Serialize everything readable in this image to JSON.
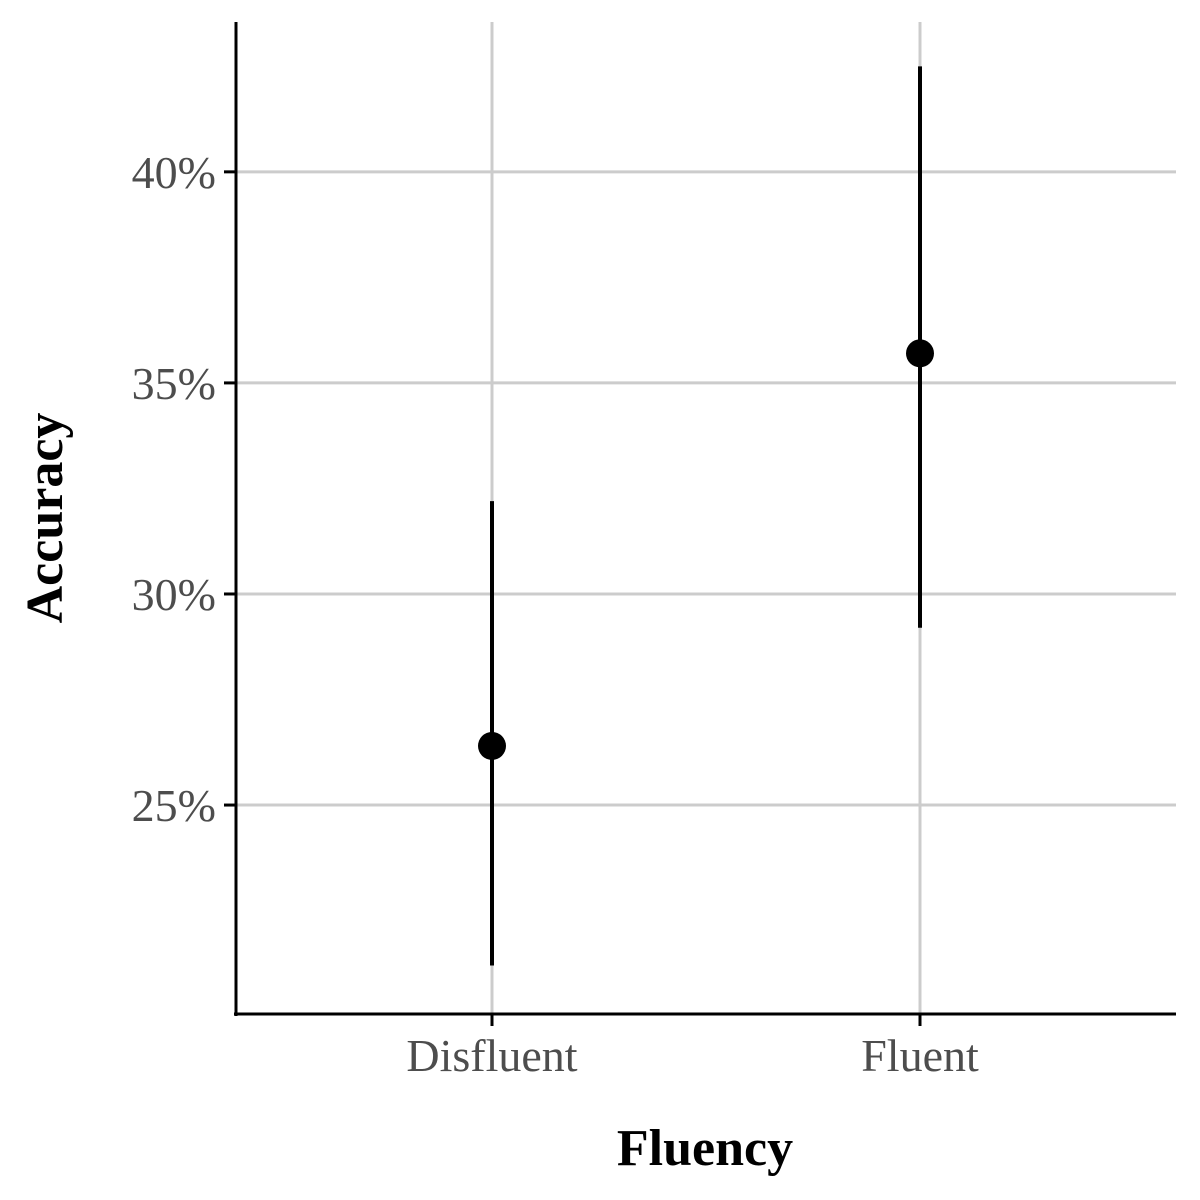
{
  "chart_data": {
    "type": "scatter",
    "title": "",
    "xlabel": "Fluency",
    "ylabel": "Accuracy",
    "categories": [
      "Disfluent",
      "Fluent"
    ],
    "series": [
      {
        "values": [
          26.4,
          35.7
        ],
        "ci_lower": [
          21.2,
          29.2
        ],
        "ci_upper": [
          32.2,
          42.5
        ]
      }
    ],
    "yticks": [
      25,
      30,
      35,
      40
    ],
    "ytick_labels": [
      "25%",
      "30%",
      "35%",
      "40%"
    ],
    "ylim": [
      20.05,
      43.55
    ],
    "grid": true,
    "legend": "none",
    "colors": {
      "point": "#000000",
      "errorbar": "#000000",
      "grid": "#cccccc",
      "axis": "#000000",
      "tick_label": "#4d4d4d"
    }
  }
}
